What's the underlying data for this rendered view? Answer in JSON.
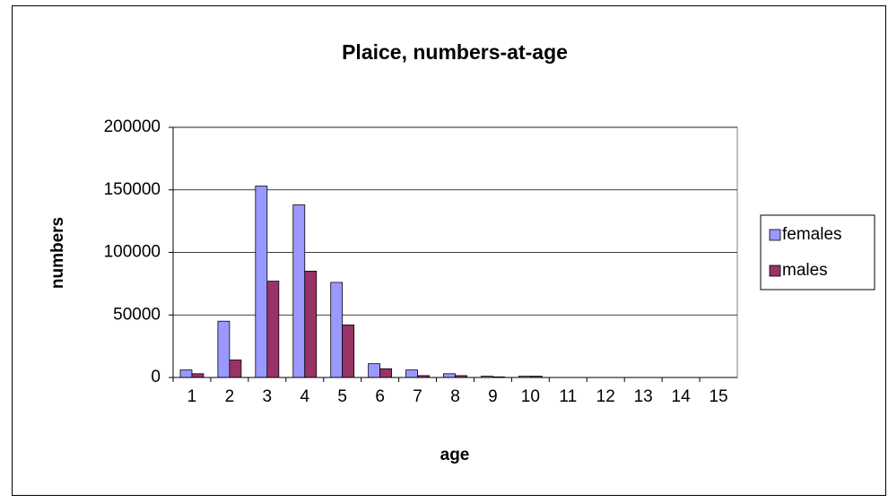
{
  "chart_data": {
    "type": "bar",
    "title": "Plaice, numbers-at-age",
    "x_label": "age",
    "y_label": "numbers",
    "categories": [
      1,
      2,
      3,
      4,
      5,
      6,
      7,
      8,
      9,
      10,
      11,
      12,
      13,
      14,
      15
    ],
    "series": [
      {
        "name": "females",
        "color": "#9999ff",
        "values": [
          6000,
          45000,
          153000,
          138000,
          76000,
          11000,
          6000,
          3000,
          1000,
          1000,
          0,
          0,
          0,
          0,
          0
        ]
      },
      {
        "name": "males",
        "color": "#993366",
        "values": [
          3000,
          14000,
          77000,
          85000,
          42000,
          7000,
          1500,
          1500,
          500,
          1000,
          0,
          0,
          0,
          0,
          0
        ]
      }
    ],
    "ylim": [
      0,
      200000
    ],
    "yticks": [
      0,
      50000,
      100000,
      150000,
      200000
    ],
    "grid": true,
    "legend": "right"
  }
}
